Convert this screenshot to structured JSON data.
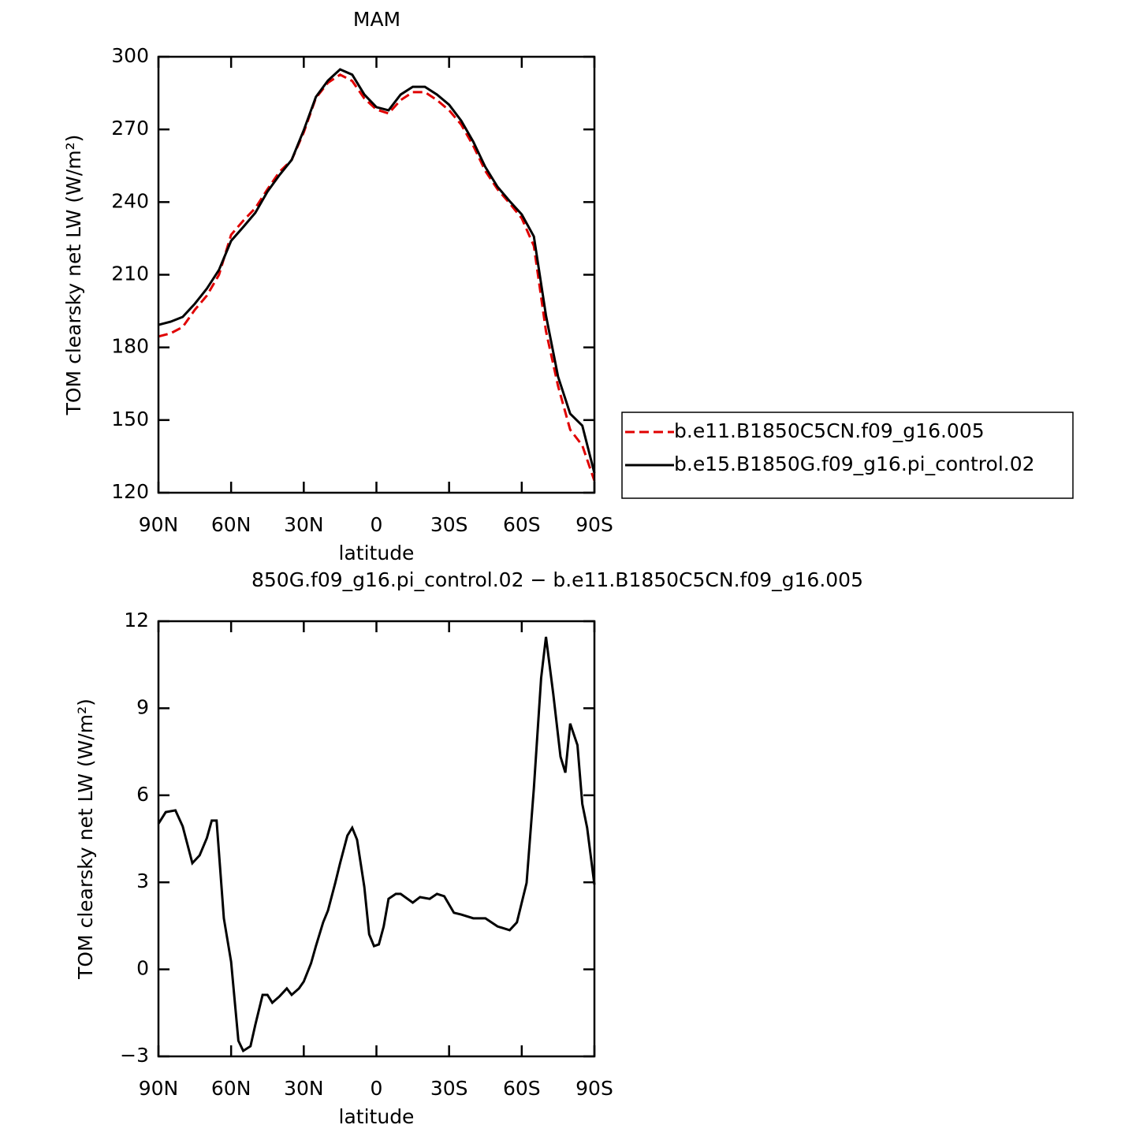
{
  "chart_data": [
    {
      "type": "line",
      "title": "MAM",
      "x_label": "latitude",
      "y_label": "TOM clearsky net LW (W/m²)",
      "x": [
        90,
        85,
        80,
        75,
        70,
        65,
        60,
        55,
        50,
        45,
        40,
        35,
        30,
        25,
        20,
        15,
        10,
        5,
        0,
        -5,
        -10,
        -15,
        -20,
        -25,
        -30,
        -35,
        -40,
        -45,
        -50,
        -55,
        -60,
        -65,
        -70,
        -75,
        -80,
        -85,
        -90
      ],
      "series": [
        {
          "name": "b.e11.B1850C5CN.f09_g16.005",
          "color": "#e00000",
          "linestyle": "dashed",
          "values": [
            184.5,
            185.8,
            188.4,
            195.5,
            201.4,
            210,
            226.5,
            232.3,
            237.5,
            245.3,
            252.5,
            257.4,
            268.8,
            283,
            289.3,
            292.6,
            290,
            282.8,
            278.2,
            276.6,
            282.1,
            285.4,
            285.4,
            282.1,
            277.9,
            272,
            263.2,
            252.8,
            245.3,
            239.5,
            233.3,
            221.9,
            186.7,
            164,
            146,
            139.5,
            124.9
          ]
        },
        {
          "name": "b.e15.B1850G.f09_g16.pi_control.02",
          "color": "#000000",
          "linestyle": "solid",
          "values": [
            189.3,
            190.6,
            192.6,
            198,
            204.3,
            212,
            224,
            229.7,
            235.6,
            244.3,
            251.2,
            257.4,
            269.7,
            283.4,
            290.2,
            294.8,
            292.6,
            284.4,
            279.2,
            277.9,
            284.4,
            287.6,
            287.6,
            284.4,
            280.2,
            273.6,
            264.9,
            254.4,
            246.3,
            240.4,
            234.9,
            225.8,
            193.2,
            167.9,
            152.6,
            147.7,
            128.1
          ]
        }
      ],
      "xlim": [
        90,
        -90
      ],
      "xticks": [
        {
          "value": 90,
          "label": "90N"
        },
        {
          "value": 60,
          "label": "60N"
        },
        {
          "value": 30,
          "label": "30N"
        },
        0,
        {
          "value": -30,
          "label": "30S"
        },
        {
          "value": -60,
          "label": "60S"
        },
        {
          "value": -90,
          "label": "90S"
        }
      ],
      "ylim": [
        120,
        300
      ],
      "yticks": [
        120,
        150,
        180,
        210,
        240,
        270,
        300
      ],
      "legend": "outside-right"
    },
    {
      "type": "line",
      "title": "850G.f09_g16.pi_control.02 − b.e11.B1850C5CN.f09_g16.005",
      "x_label": "latitude",
      "y_label": "TOM clearsky net LW (W/m²)",
      "x": [
        90,
        87,
        83,
        80,
        76,
        73,
        70,
        68,
        66,
        63,
        60,
        57,
        55,
        52,
        50,
        47,
        45,
        43,
        40,
        37,
        35,
        32,
        30,
        27,
        25,
        22,
        20,
        17,
        15,
        12,
        10,
        8,
        5,
        3,
        1,
        -1,
        -3,
        -5,
        -8,
        -10,
        -15,
        -18,
        -22,
        -25,
        -28,
        -32,
        -35,
        -40,
        -45,
        -50,
        -55,
        -58,
        -62,
        -65,
        -68,
        -70,
        -73,
        -76,
        -78,
        -80,
        -83,
        -85,
        -87,
        -90
      ],
      "series": [
        {
          "color": "#000000",
          "linestyle": "solid",
          "values": [
            5.02,
            5.42,
            5.48,
            4.93,
            3.66,
            3.93,
            4.53,
            5.13,
            5.13,
            1.76,
            0.26,
            -2.46,
            -2.81,
            -2.65,
            -1.91,
            -0.88,
            -0.88,
            -1.15,
            -0.93,
            -0.66,
            -0.88,
            -0.66,
            -0.42,
            0.21,
            0.8,
            1.62,
            2.03,
            2.98,
            3.66,
            4.61,
            4.88,
            4.47,
            2.84,
            1.21,
            0.8,
            0.86,
            1.48,
            2.43,
            2.6,
            2.6,
            2.3,
            2.49,
            2.43,
            2.6,
            2.52,
            1.95,
            1.89,
            1.76,
            1.76,
            1.48,
            1.35,
            1.62,
            2.98,
            6.24,
            10.04,
            11.46,
            9.5,
            7.33,
            6.78,
            8.47,
            7.73,
            5.7,
            4.88,
            2.92
          ]
        }
      ],
      "xlim": [
        90,
        -90
      ],
      "xticks": [
        {
          "value": 90,
          "label": "90N"
        },
        {
          "value": 60,
          "label": "60N"
        },
        {
          "value": 30,
          "label": "30N"
        },
        0,
        {
          "value": -30,
          "label": "30S"
        },
        {
          "value": -60,
          "label": "60S"
        },
        {
          "value": -90,
          "label": "90S"
        }
      ],
      "ylim": [
        -3,
        12
      ],
      "yticks": [
        {
          "value": -3,
          "label": "−3"
        },
        0,
        3,
        6,
        9,
        12
      ]
    }
  ]
}
